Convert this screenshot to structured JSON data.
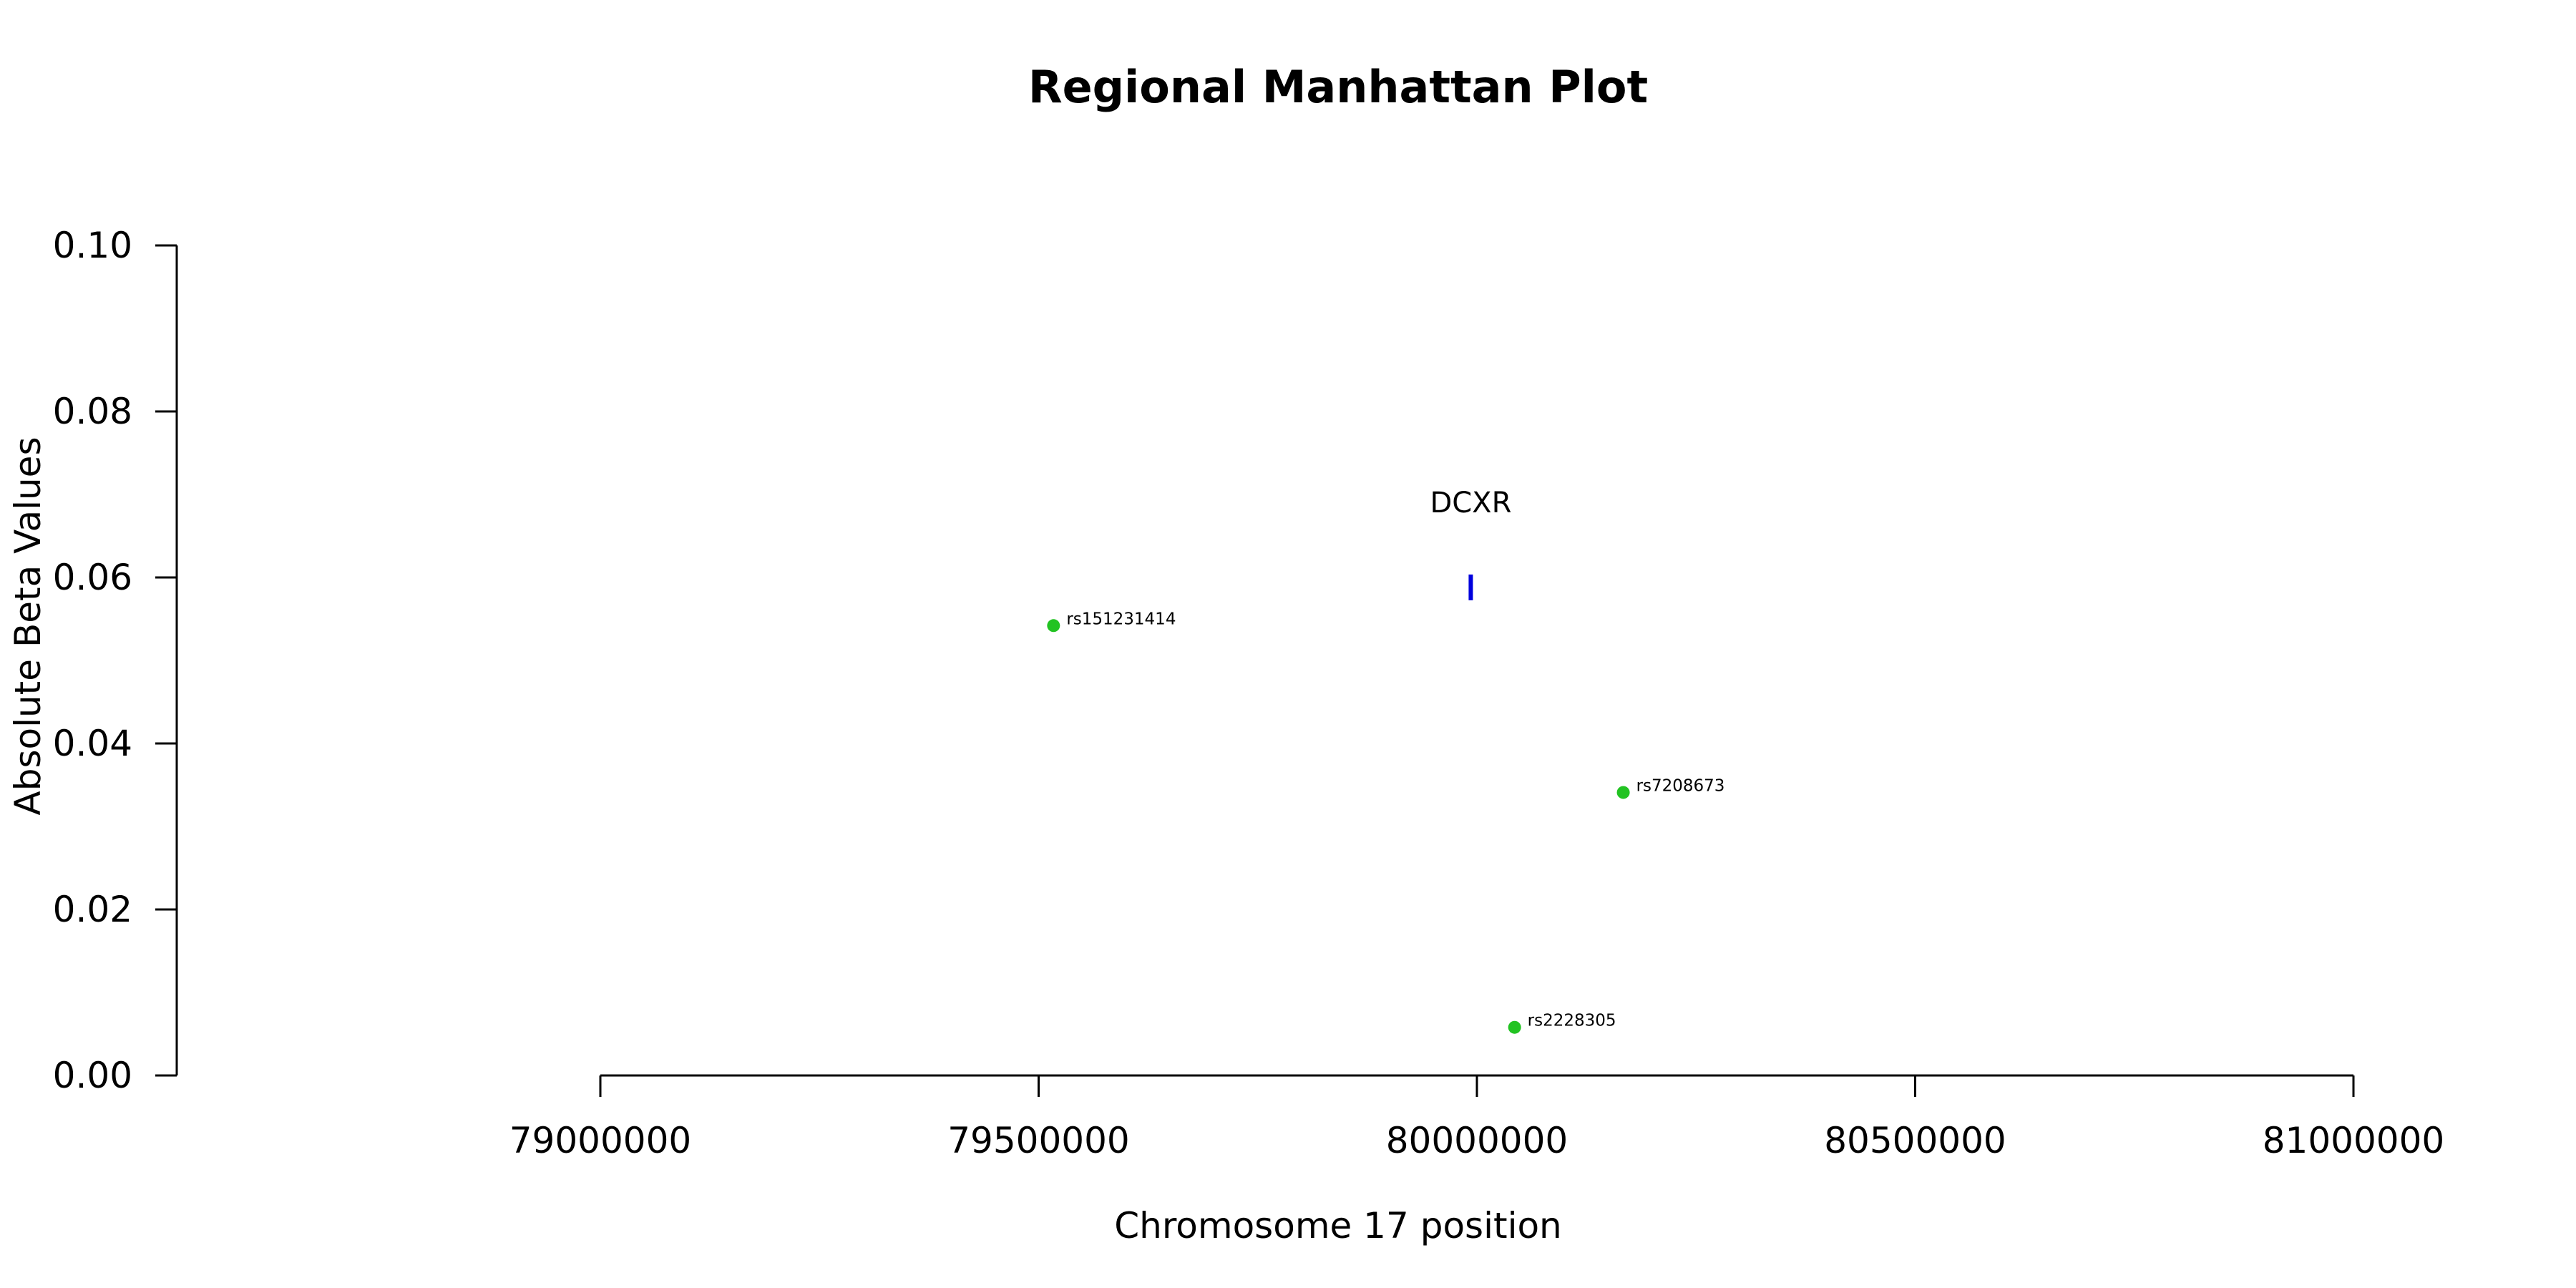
{
  "chart_data": {
    "type": "scatter",
    "title": "Regional Manhattan Plot",
    "xlabel": "Chromosome 17 position",
    "ylabel": "Absolute Beta Values",
    "xlim": [
      79000000,
      81000000
    ],
    "ylim": [
      0,
      0.1
    ],
    "x_ticks": [
      79000000,
      79500000,
      80000000,
      80500000,
      81000000
    ],
    "x_tick_labels": [
      "79000000",
      "79500000",
      "80000000",
      "80500000",
      "81000000"
    ],
    "y_ticks": [
      0,
      0.02,
      0.04,
      0.06,
      0.08,
      0.1
    ],
    "y_tick_labels": [
      "0.00",
      "0.02",
      "0.04",
      "0.06",
      "0.08",
      "0.10"
    ],
    "grid": false,
    "point_color": "#22c322",
    "gene_color": "#0000dd",
    "points": [
      {
        "label": "rs151231414",
        "x": 79517000,
        "y": 0.0542
      },
      {
        "label": "rs7208673",
        "x": 80167000,
        "y": 0.0341
      },
      {
        "label": "rs2228305",
        "x": 80043000,
        "y": 0.0058
      }
    ],
    "genes": [
      {
        "label": "DCXR",
        "x": 79993000,
        "y": 0.0588
      }
    ]
  }
}
